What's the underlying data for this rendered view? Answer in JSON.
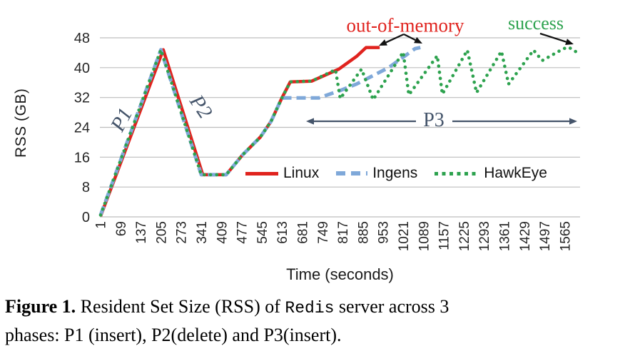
{
  "chart_data": {
    "type": "line",
    "title": "",
    "xlabel": "Time (seconds)",
    "ylabel": "RSS (GB)",
    "xlim": [
      1,
      1617
    ],
    "ylim": [
      0,
      48
    ],
    "grid": "horizontal",
    "grid_color": "#bdbdbd",
    "tick_color": "#262626",
    "legend_position": "inside-bottom",
    "y_ticks": [
      0,
      8,
      16,
      24,
      32,
      40,
      48
    ],
    "x_ticks": [
      "1",
      "69",
      "137",
      "205",
      "273",
      "341",
      "409",
      "477",
      "545",
      "613",
      "681",
      "749",
      "817",
      "885",
      "953",
      "1021",
      "1089",
      "1157",
      "1225",
      "1293",
      "1361",
      "1429",
      "1497",
      "1565"
    ],
    "series": [
      {
        "name": "Linux",
        "color": "#e0231e",
        "style": "solid",
        "points": [
          [
            1,
            0.2
          ],
          [
            212,
            44.8
          ],
          [
            345,
            11.3
          ],
          [
            424,
            11.3
          ],
          [
            479,
            16.6
          ],
          [
            539,
            21.4
          ],
          [
            575,
            25.6
          ],
          [
            611,
            31.8
          ],
          [
            640,
            36.2
          ],
          [
            712,
            36.4
          ],
          [
            803,
            39.6
          ],
          [
            863,
            43.0
          ],
          [
            895,
            45.4
          ],
          [
            941,
            45.4
          ]
        ]
      },
      {
        "name": "Ingens",
        "color": "#7fa8d9",
        "style": "dashed",
        "points": [
          [
            1,
            0.5
          ],
          [
            204,
            44.8
          ],
          [
            340,
            11.3
          ],
          [
            424,
            11.3
          ],
          [
            479,
            16.6
          ],
          [
            539,
            21.4
          ],
          [
            575,
            25.6
          ],
          [
            611,
            31.8
          ],
          [
            622,
            31.9
          ],
          [
            736,
            31.9
          ],
          [
            805,
            33.8
          ],
          [
            863,
            35.6
          ],
          [
            971,
            40.0
          ],
          [
            1060,
            45.1
          ],
          [
            1078,
            45.4
          ]
        ]
      },
      {
        "name": "HawkEye",
        "color": "#2da24e",
        "style": "dotted",
        "points": [
          [
            1,
            0.5
          ],
          [
            204,
            44.8
          ],
          [
            340,
            11.3
          ],
          [
            424,
            11.3
          ],
          [
            479,
            16.6
          ],
          [
            539,
            21.4
          ],
          [
            575,
            25.6
          ],
          [
            611,
            31.8
          ],
          [
            640,
            36.2
          ],
          [
            712,
            36.4
          ],
          [
            780,
            39.0
          ],
          [
            792,
            39.5
          ],
          [
            808,
            31.7
          ],
          [
            880,
            39.6
          ],
          [
            919,
            31.4
          ],
          [
            1020,
            44.2
          ],
          [
            1039,
            32.7
          ],
          [
            1135,
            43.2
          ],
          [
            1152,
            32.9
          ],
          [
            1236,
            44.7
          ],
          [
            1267,
            33.3
          ],
          [
            1351,
            44.4
          ],
          [
            1375,
            35.6
          ],
          [
            1459,
            44.7
          ],
          [
            1488,
            41.9
          ],
          [
            1560,
            45.1
          ],
          [
            1577,
            45.5
          ],
          [
            1601,
            44.3
          ]
        ]
      }
    ],
    "annotations": {
      "p1": {
        "label": "P1",
        "x": 171,
        "y": 168,
        "rotate": -62,
        "color": "#44546a"
      },
      "p2": {
        "label": "P2",
        "x": 281,
        "y": 150,
        "rotate": 56,
        "color": "#44546a"
      },
      "p3": {
        "label": "P3",
        "x": 608,
        "y": 169,
        "color": "#44546a",
        "arrow_color": "#44546a",
        "arrows": [
          [
            583,
            170,
            429,
            170
          ],
          [
            634,
            170,
            809,
            170
          ]
        ]
      },
      "oom": {
        "label": "out-of-memory",
        "x": 568,
        "y": 36,
        "color": "#e0231e",
        "arrow_color": "#111111",
        "arrows": [
          [
            566,
            48,
            531,
            64
          ],
          [
            566,
            48,
            592,
            61
          ]
        ]
      },
      "success": {
        "label": "success",
        "x": 751,
        "y": 33,
        "color": "#2da24e",
        "arrow_color": "#111111",
        "arrows": [
          [
            757,
            47,
            804,
            62
          ]
        ]
      }
    }
  },
  "caption": {
    "figure_label": "Figure 1.",
    "line1_text": " Resident Set Size (RSS) of ",
    "code_text": "Redis",
    "line1_tail": " server across 3",
    "line2": "phases: P1 (insert), P2(delete) and P3(insert)."
  }
}
